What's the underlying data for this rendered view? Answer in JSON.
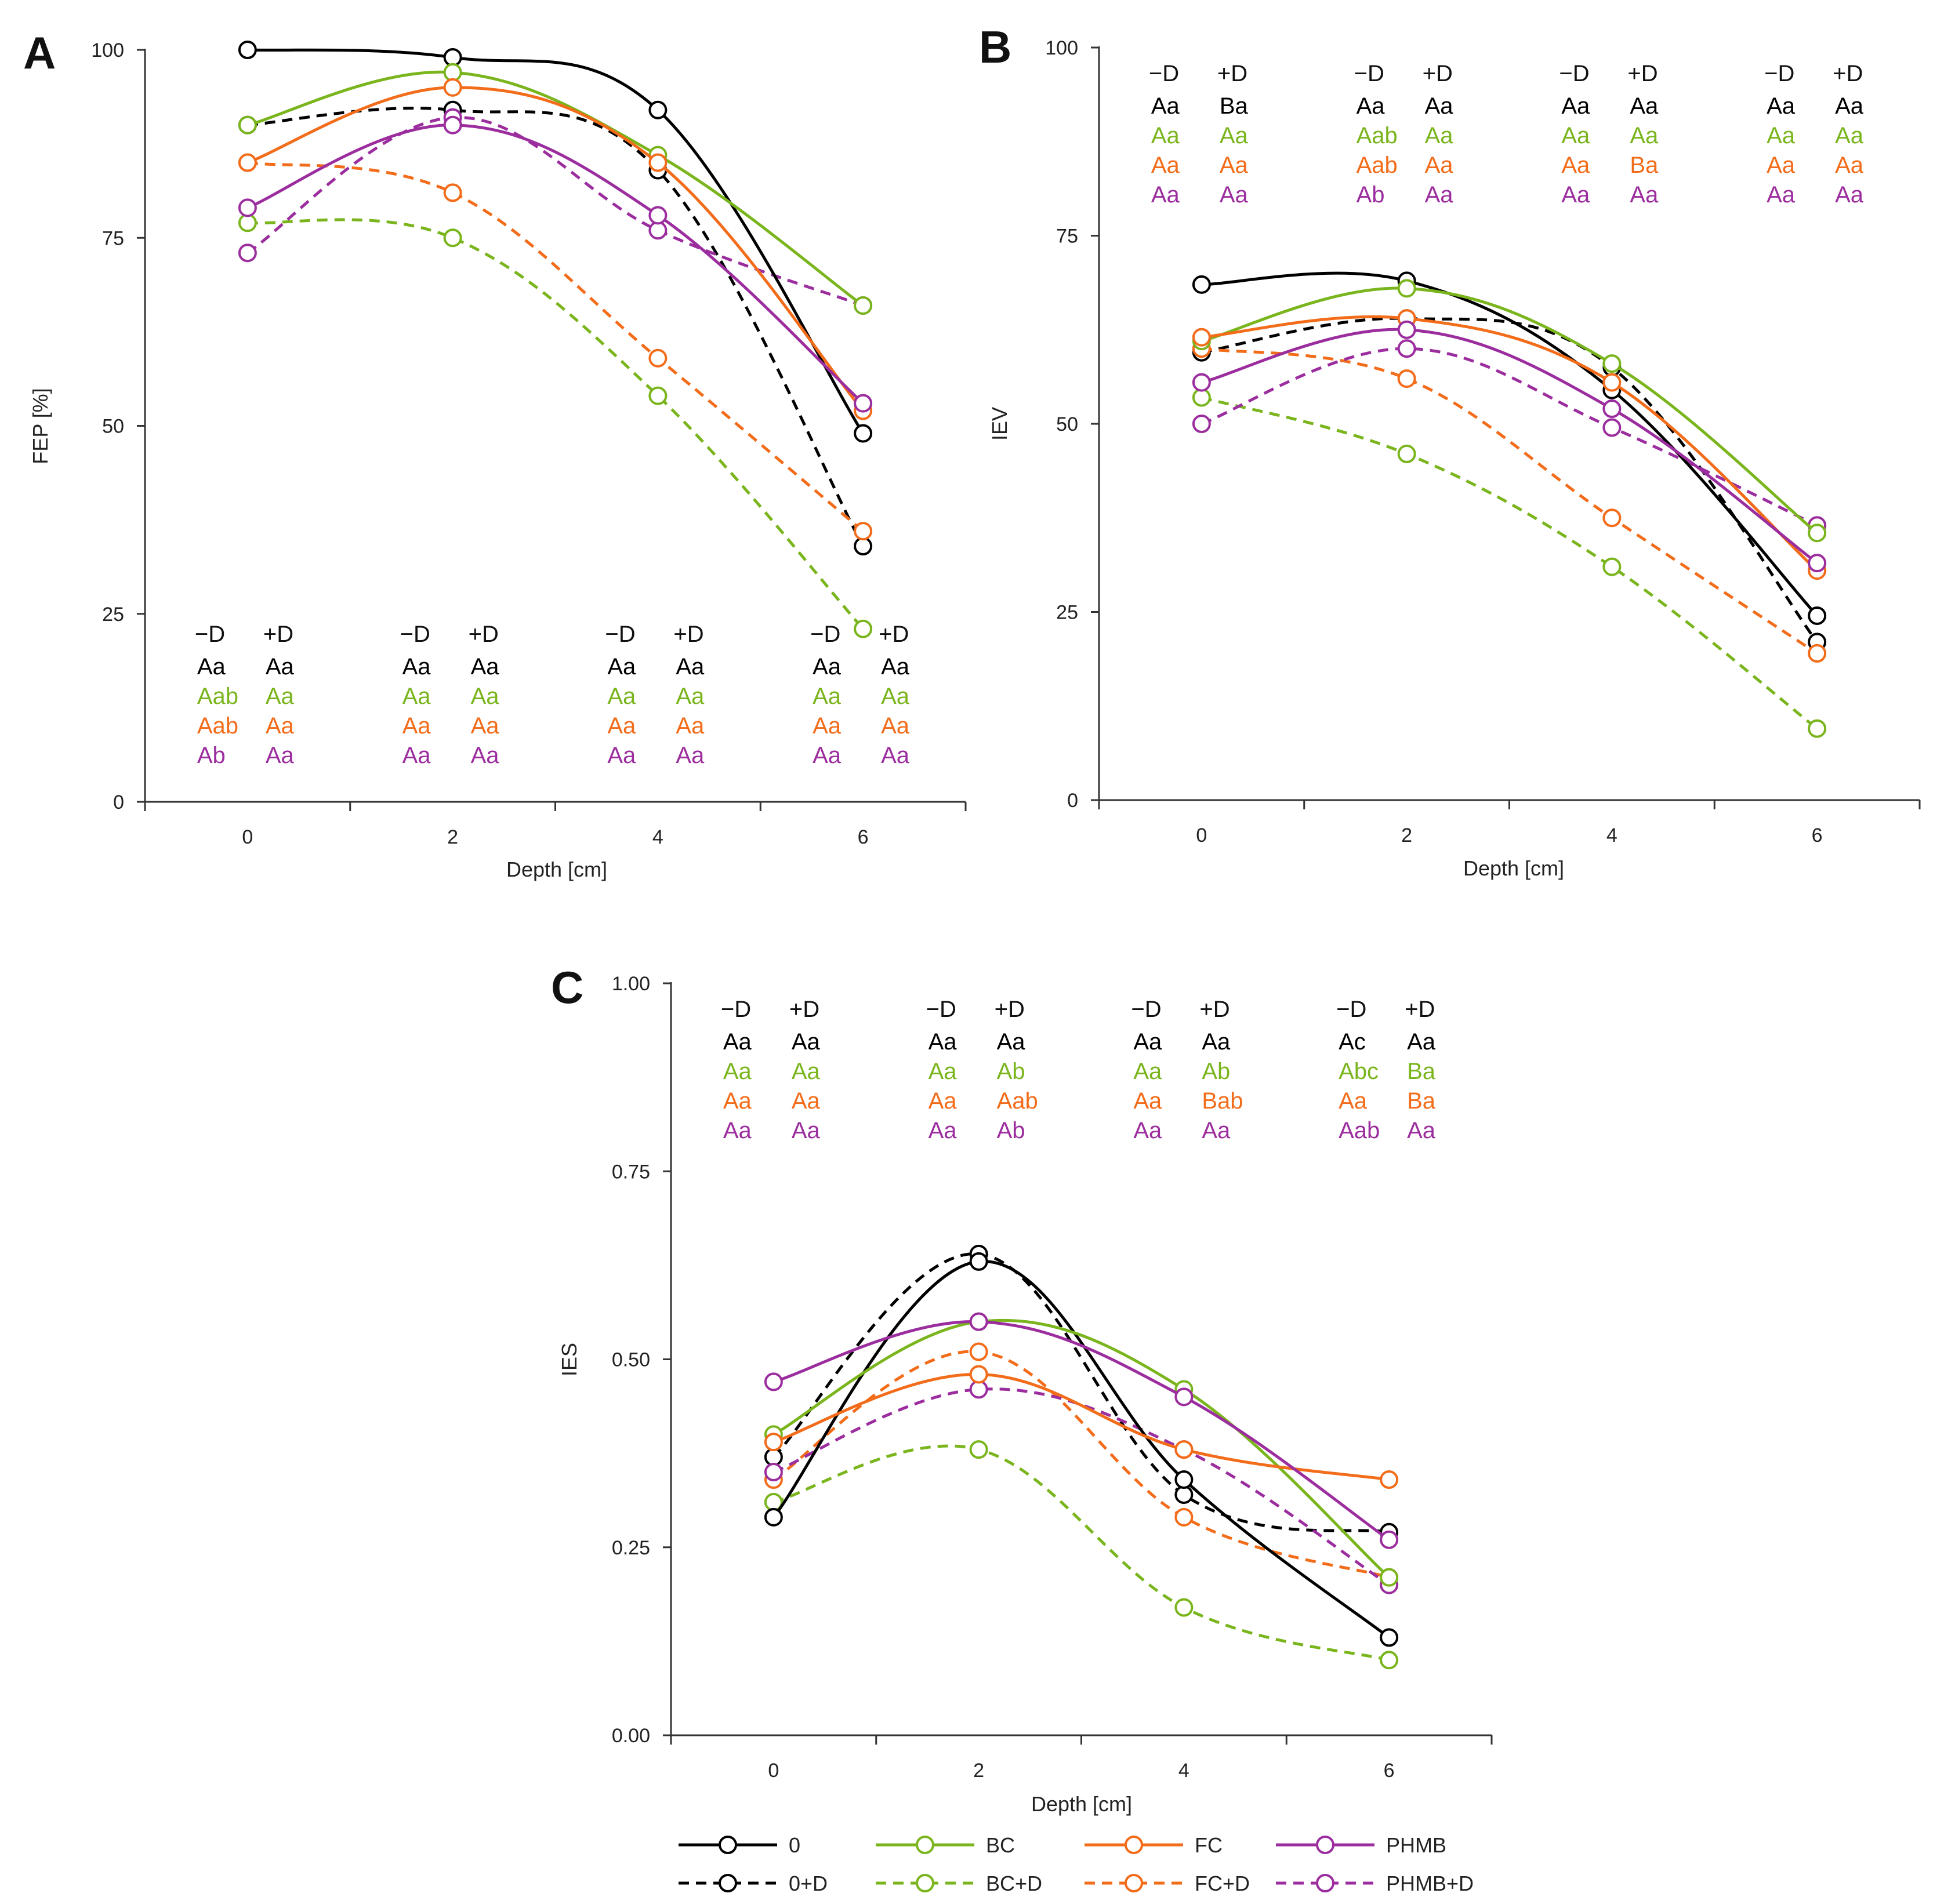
{
  "figure": {
    "colors": {
      "0": "#000000",
      "BC": "#7ab51d",
      "FC": "#f26c1a",
      "PHMB": "#9b2d9e"
    },
    "xlabel": "Depth [cm]",
    "legend": {
      "solid": [
        {
          "key": "0",
          "label": "0"
        },
        {
          "key": "BC",
          "label": "BC"
        },
        {
          "key": "FC",
          "label": "FC"
        },
        {
          "key": "PHMB",
          "label": "PHMB"
        }
      ],
      "dashed": [
        {
          "key": "0",
          "label": "0+D"
        },
        {
          "key": "BC",
          "label": "BC+D"
        },
        {
          "key": "FC",
          "label": "FC+D"
        },
        {
          "key": "PHMB",
          "label": "PHMB+D"
        }
      ]
    }
  },
  "chart_data": [
    {
      "panel": "A",
      "type": "line",
      "ylabel": "FEP [%]",
      "xlabel": "Depth [cm]",
      "x": [
        0,
        2,
        4,
        6
      ],
      "xlim": [
        -1,
        7
      ],
      "ylim": [
        0,
        100
      ],
      "yticks": [
        0,
        25,
        50,
        75,
        100
      ],
      "ytick_labels": [
        "0",
        "25",
        "50",
        "75",
        "100"
      ],
      "letters_position": "bottom",
      "series": [
        {
          "name": "0",
          "key": "0",
          "dash": false,
          "values": [
            100,
            99,
            92,
            49
          ]
        },
        {
          "name": "0+D",
          "key": "0",
          "dash": true,
          "values": [
            90,
            92,
            84,
            34
          ]
        },
        {
          "name": "BC",
          "key": "BC",
          "dash": false,
          "values": [
            90,
            97,
            86,
            66
          ]
        },
        {
          "name": "BC+D",
          "key": "BC",
          "dash": true,
          "values": [
            77,
            75,
            54,
            23
          ]
        },
        {
          "name": "FC",
          "key": "FC",
          "dash": false,
          "values": [
            85,
            95,
            85,
            52
          ]
        },
        {
          "name": "FC+D",
          "key": "FC",
          "dash": true,
          "values": [
            85,
            81,
            59,
            36
          ]
        },
        {
          "name": "PHMB",
          "key": "PHMB",
          "dash": false,
          "values": [
            79,
            90,
            78,
            53
          ]
        },
        {
          "name": "PHMB+D",
          "key": "PHMB",
          "dash": true,
          "values": [
            73,
            91,
            76,
            66
          ]
        }
      ],
      "letters": {
        "headers": [
          "−D",
          "+D"
        ],
        "rows": [
          "0",
          "BC",
          "FC",
          "PHMB"
        ],
        "groups": [
          [
            [
              "Aa",
              "Aa"
            ],
            [
              "Aab",
              "Aa"
            ],
            [
              "Aab",
              "Aa"
            ],
            [
              "Ab",
              "Aa"
            ]
          ],
          [
            [
              "Aa",
              "Aa"
            ],
            [
              "Aa",
              "Aa"
            ],
            [
              "Aa",
              "Aa"
            ],
            [
              "Aa",
              "Aa"
            ]
          ],
          [
            [
              "Aa",
              "Aa"
            ],
            [
              "Aa",
              "Aa"
            ],
            [
              "Aa",
              "Aa"
            ],
            [
              "Aa",
              "Aa"
            ]
          ],
          [
            [
              "Aa",
              "Aa"
            ],
            [
              "Aa",
              "Aa"
            ],
            [
              "Aa",
              "Aa"
            ],
            [
              "Aa",
              "Aa"
            ]
          ]
        ]
      }
    },
    {
      "panel": "B",
      "type": "line",
      "ylabel": "IEV",
      "xlabel": "Depth [cm]",
      "x": [
        0,
        2,
        4,
        6
      ],
      "xlim": [
        -1,
        7
      ],
      "ylim": [
        0,
        100
      ],
      "yticks": [
        0,
        25,
        50,
        75,
        100
      ],
      "ytick_labels": [
        "0",
        "25",
        "50",
        "75",
        "100"
      ],
      "letters_position": "top",
      "series": [
        {
          "name": "0",
          "key": "0",
          "dash": false,
          "values": [
            68.5,
            69,
            54.5,
            24.5
          ]
        },
        {
          "name": "0+D",
          "key": "0",
          "dash": true,
          "values": [
            59.5,
            64,
            57.5,
            21
          ]
        },
        {
          "name": "BC",
          "key": "BC",
          "dash": false,
          "values": [
            61,
            68,
            58,
            35.5
          ]
        },
        {
          "name": "BC+D",
          "key": "BC",
          "dash": true,
          "values": [
            53.5,
            46,
            31,
            9.5
          ]
        },
        {
          "name": "FC",
          "key": "FC",
          "dash": false,
          "values": [
            61.5,
            64,
            55.5,
            30.5
          ]
        },
        {
          "name": "FC+D",
          "key": "FC",
          "dash": true,
          "values": [
            60,
            56,
            37.5,
            19.5
          ]
        },
        {
          "name": "PHMB",
          "key": "PHMB",
          "dash": false,
          "values": [
            55.5,
            62.5,
            52,
            31.5
          ]
        },
        {
          "name": "PHMB+D",
          "key": "PHMB",
          "dash": true,
          "values": [
            50,
            60,
            49.5,
            36.5
          ]
        }
      ],
      "letters": {
        "headers": [
          "−D",
          "+D"
        ],
        "rows": [
          "0",
          "BC",
          "FC",
          "PHMB"
        ],
        "groups": [
          [
            [
              "Aa",
              "Ba"
            ],
            [
              "Aa",
              "Aa"
            ],
            [
              "Aa",
              "Aa"
            ],
            [
              "Aa",
              "Aa"
            ]
          ],
          [
            [
              "Aa",
              "Aa"
            ],
            [
              "Aab",
              "Aa"
            ],
            [
              "Aab",
              "Aa"
            ],
            [
              "Ab",
              "Aa"
            ]
          ],
          [
            [
              "Aa",
              "Aa"
            ],
            [
              "Aa",
              "Aa"
            ],
            [
              "Aa",
              "Ba"
            ],
            [
              "Aa",
              "Aa"
            ]
          ],
          [
            [
              "Aa",
              "Aa"
            ],
            [
              "Aa",
              "Aa"
            ],
            [
              "Aa",
              "Aa"
            ],
            [
              "Aa",
              "Aa"
            ]
          ]
        ]
      }
    },
    {
      "panel": "C",
      "type": "line",
      "ylabel": "IES",
      "xlabel": "Depth [cm]",
      "x": [
        0,
        2,
        4,
        6
      ],
      "xlim": [
        -1,
        7
      ],
      "ylim": [
        0,
        1
      ],
      "yticks": [
        0,
        0.25,
        0.5,
        0.75,
        1
      ],
      "ytick_labels": [
        "0.00",
        "0.25",
        "0.50",
        "0.75",
        "1.00"
      ],
      "letters_position": "top",
      "series": [
        {
          "name": "0",
          "key": "0",
          "dash": false,
          "values": [
            0.29,
            0.63,
            0.34,
            0.13
          ]
        },
        {
          "name": "0+D",
          "key": "0",
          "dash": true,
          "values": [
            0.37,
            0.64,
            0.32,
            0.27
          ]
        },
        {
          "name": "BC",
          "key": "BC",
          "dash": false,
          "values": [
            0.4,
            0.55,
            0.46,
            0.21
          ]
        },
        {
          "name": "BC+D",
          "key": "BC",
          "dash": true,
          "values": [
            0.31,
            0.38,
            0.17,
            0.1
          ]
        },
        {
          "name": "FC",
          "key": "FC",
          "dash": false,
          "values": [
            0.39,
            0.48,
            0.38,
            0.34
          ]
        },
        {
          "name": "FC+D",
          "key": "FC",
          "dash": true,
          "values": [
            0.34,
            0.51,
            0.29,
            0.21
          ]
        },
        {
          "name": "PHMB",
          "key": "PHMB",
          "dash": false,
          "values": [
            0.47,
            0.55,
            0.45,
            0.26
          ]
        },
        {
          "name": "PHMB+D",
          "key": "PHMB",
          "dash": true,
          "values": [
            0.35,
            0.46,
            0.38,
            0.2
          ]
        }
      ],
      "letters": {
        "headers": [
          "−D",
          "+D"
        ],
        "rows": [
          "0",
          "BC",
          "FC",
          "PHMB"
        ],
        "groups": [
          [
            [
              "Aa",
              "Aa"
            ],
            [
              "Aa",
              "Aa"
            ],
            [
              "Aa",
              "Aa"
            ],
            [
              "Aa",
              "Aa"
            ]
          ],
          [
            [
              "Aa",
              "Aa"
            ],
            [
              "Aa",
              "Ab"
            ],
            [
              "Aa",
              "Aab"
            ],
            [
              "Aa",
              "Ab"
            ]
          ],
          [
            [
              "Aa",
              "Aa"
            ],
            [
              "Aa",
              "Ab"
            ],
            [
              "Aa",
              "Bab"
            ],
            [
              "Aa",
              "Aa"
            ]
          ],
          [
            [
              "Ac",
              "Aa"
            ],
            [
              "Abc",
              "Ba"
            ],
            [
              "Aa",
              "Ba"
            ],
            [
              "Aab",
              "Aa"
            ]
          ]
        ]
      }
    }
  ]
}
